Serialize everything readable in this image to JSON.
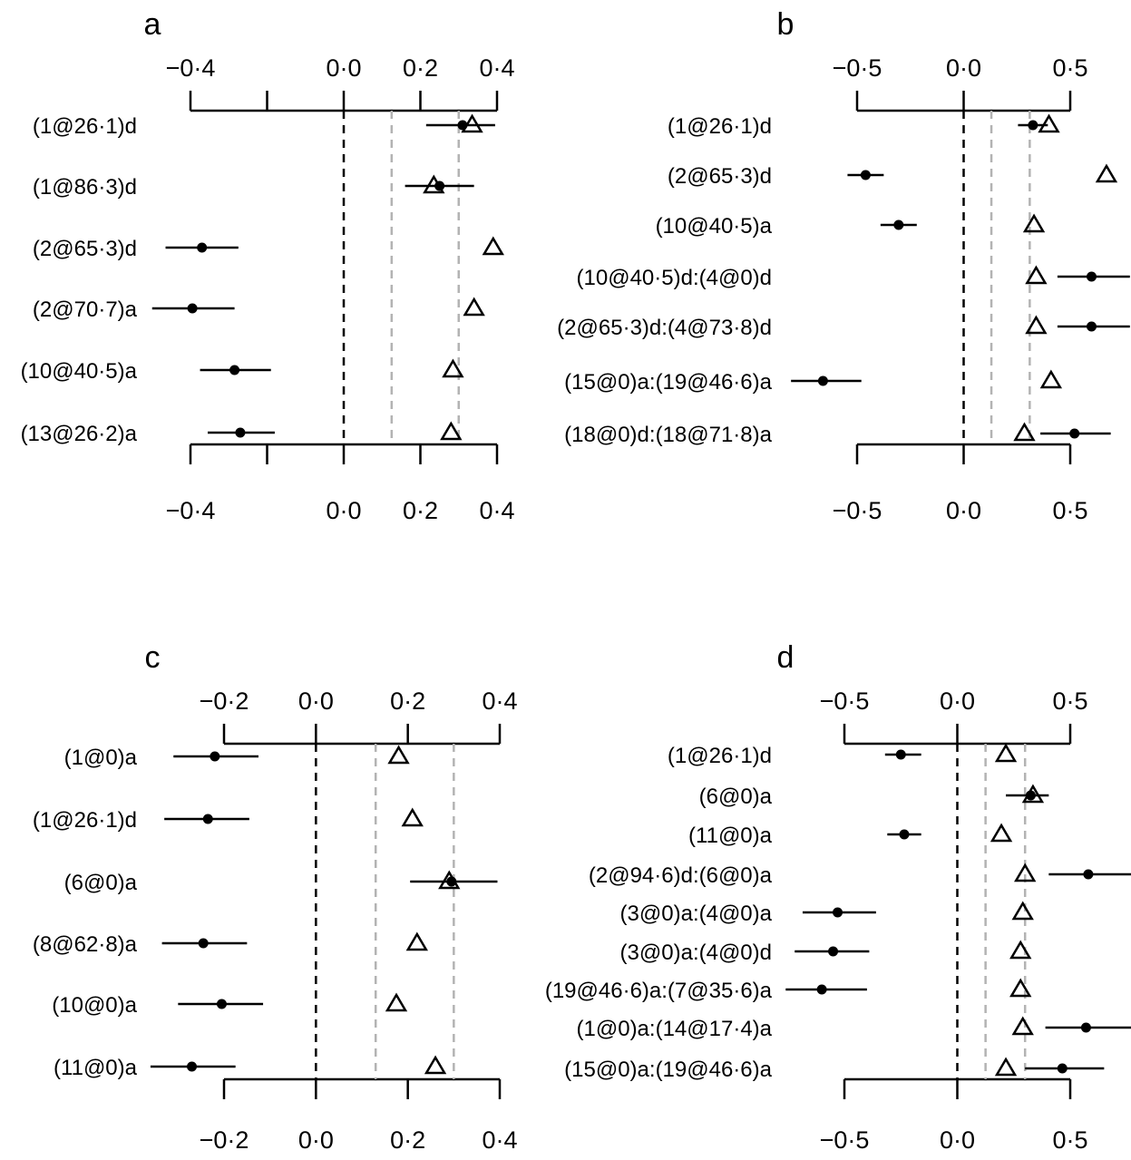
{
  "chart_data": [
    {
      "panel": "a",
      "type": "forest",
      "xlim": [
        -0.4,
        0.4
      ],
      "tick_values": [
        -0.4,
        -0.2,
        0.0,
        0.2,
        0.4
      ],
      "tick_labels": [
        "−0·4",
        "",
        "0·0",
        "0·2",
        "0·4"
      ],
      "reference_line": 0.0,
      "grey_lines": [
        0.125,
        0.3
      ],
      "rows": [
        {
          "label": "(1@26·1)d",
          "point": 0.31,
          "ci": [
            0.215,
            0.395
          ],
          "triangle": 0.335
        },
        {
          "label": "(1@86·3)d",
          "point": 0.25,
          "ci": [
            0.16,
            0.34
          ],
          "triangle": 0.235
        },
        {
          "label": "(2@65·3)d",
          "point": -0.37,
          "ci": [
            -0.465,
            -0.275
          ],
          "triangle": 0.39
        },
        {
          "label": "(2@70·7)a",
          "point": -0.395,
          "ci": [
            -0.5,
            -0.285
          ],
          "triangle": 0.34
        },
        {
          "label": "(10@40·5)a",
          "point": -0.285,
          "ci": [
            -0.375,
            -0.19
          ],
          "triangle": 0.285
        },
        {
          "label": "(13@26·2)a",
          "point": -0.27,
          "ci": [
            -0.355,
            -0.18
          ],
          "triangle": 0.28
        }
      ]
    },
    {
      "panel": "b",
      "type": "forest",
      "xlim": [
        -0.5,
        0.5
      ],
      "tick_values": [
        -0.5,
        0.0,
        0.5
      ],
      "tick_labels": [
        "−0·5",
        "0·0",
        "0·5"
      ],
      "reference_line": 0.0,
      "grey_lines": [
        0.13,
        0.31
      ],
      "rows": [
        {
          "label": "(1@26·1)d",
          "point": 0.325,
          "ci": [
            0.255,
            0.395
          ],
          "triangle": 0.4
        },
        {
          "label": "(2@65·3)d",
          "point": -0.46,
          "ci": [
            -0.545,
            -0.375
          ],
          "triangle": 0.67
        },
        {
          "label": "(10@40·5)a",
          "point": -0.305,
          "ci": [
            -0.39,
            -0.22
          ],
          "triangle": 0.33
        },
        {
          "label": "(10@40·5)d:(4@0)d",
          "point": 0.6,
          "ci": [
            0.44,
            0.78
          ],
          "triangle": 0.34
        },
        {
          "label": "(2@65·3)d:(4@73·8)d",
          "point": 0.6,
          "ci": [
            0.44,
            0.78
          ],
          "triangle": 0.34
        },
        {
          "label": "(15@0)a:(19@46·6)a",
          "point": -0.66,
          "ci": [
            -0.81,
            -0.48
          ],
          "triangle": 0.41
        },
        {
          "label": "(18@0)d:(18@71·8)a",
          "point": 0.52,
          "ci": [
            0.36,
            0.69
          ],
          "triangle": 0.285
        }
      ]
    },
    {
      "panel": "c",
      "type": "forest",
      "xlim": [
        -0.2,
        0.4
      ],
      "tick_values": [
        -0.2,
        0.0,
        0.2,
        0.4
      ],
      "tick_labels": [
        "−0·2",
        "0·0",
        "0·2",
        "0·4"
      ],
      "reference_line": 0.0,
      "grey_lines": [
        0.13,
        0.3
      ],
      "rows": [
        {
          "label": "(1@0)a",
          "point": -0.22,
          "ci": [
            -0.31,
            -0.125
          ],
          "triangle": 0.18
        },
        {
          "label": "(1@26·1)d",
          "point": -0.235,
          "ci": [
            -0.33,
            -0.145
          ],
          "triangle": 0.21
        },
        {
          "label": "(6@0)a",
          "point": 0.295,
          "ci": [
            0.205,
            0.395
          ],
          "triangle": 0.29
        },
        {
          "label": "(8@62·8)a",
          "point": -0.245,
          "ci": [
            -0.335,
            -0.15
          ],
          "triangle": 0.22
        },
        {
          "label": "(10@0)a",
          "point": -0.205,
          "ci": [
            -0.3,
            -0.115
          ],
          "triangle": 0.175
        },
        {
          "label": "(11@0)a",
          "point": -0.27,
          "ci": [
            -0.36,
            -0.175
          ],
          "triangle": 0.26
        }
      ]
    },
    {
      "panel": "d",
      "type": "forest",
      "xlim": [
        -0.5,
        0.5
      ],
      "tick_values": [
        -0.5,
        0.0,
        0.5
      ],
      "tick_labels": [
        "−0·5",
        "0·0",
        "0·5"
      ],
      "reference_line": 0.0,
      "grey_lines": [
        0.125,
        0.3
      ],
      "rows": [
        {
          "label": "(1@26·1)d",
          "point": -0.25,
          "ci": [
            -0.32,
            -0.16
          ],
          "triangle": 0.215
        },
        {
          "label": "(6@0)a",
          "point": 0.325,
          "ci": [
            0.215,
            0.405
          ],
          "triangle": 0.335
        },
        {
          "label": "(11@0)a",
          "point": -0.235,
          "ci": [
            -0.31,
            -0.16
          ],
          "triangle": 0.195
        },
        {
          "label": "(2@94·6)d:(6@0)a",
          "point": 0.58,
          "ci": [
            0.405,
            0.77
          ],
          "triangle": 0.3
        },
        {
          "label": "(3@0)a:(4@0)a",
          "point": -0.53,
          "ci": [
            -0.685,
            -0.36
          ],
          "triangle": 0.29
        },
        {
          "label": "(3@0)a:(4@0)d",
          "point": -0.55,
          "ci": [
            -0.72,
            -0.39
          ],
          "triangle": 0.28
        },
        {
          "label": "(19@46·6)a:(7@35·6)a",
          "point": -0.6,
          "ci": [
            -0.76,
            -0.4
          ],
          "triangle": 0.28
        },
        {
          "label": "(1@0)a:(14@17·4)a",
          "point": 0.57,
          "ci": [
            0.39,
            0.77
          ],
          "triangle": 0.29
        },
        {
          "label": "(15@0)a:(19@46·6)a",
          "point": 0.465,
          "ci": [
            0.3,
            0.65
          ],
          "triangle": 0.215
        }
      ]
    }
  ]
}
